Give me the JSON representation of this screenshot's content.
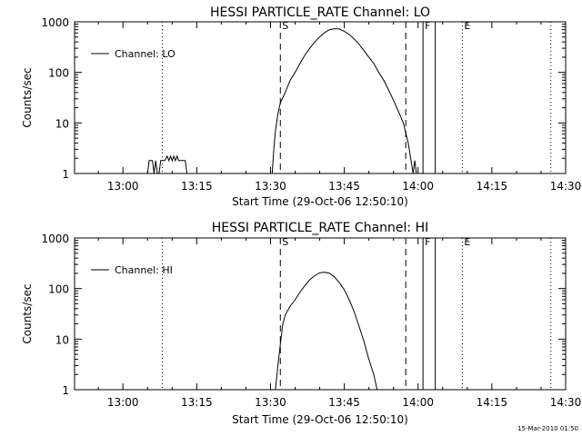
{
  "footer": {
    "timestamp": "15-Mar-2010 01:50"
  },
  "chart_data": [
    {
      "type": "line",
      "title": "HESSI PARTICLE_RATE Channel: LO",
      "xlabel": "Start Time (29-Oct-06 12:50:10)",
      "ylabel": "Counts/sec",
      "yscale": "log",
      "xlim": [
        "12:50:10",
        "14:30:00"
      ],
      "ylim": [
        1,
        1000
      ],
      "x_ticks": [
        "13:00",
        "13:15",
        "13:30",
        "13:45",
        "14:00",
        "14:15",
        "14:30"
      ],
      "y_ticks": [
        "1",
        "10",
        "100",
        "1000"
      ],
      "legend": {
        "position": "top-left",
        "entries": [
          "Channel: LO"
        ]
      },
      "markers": [
        {
          "label": "",
          "time": "13:08:00",
          "style": "dotted"
        },
        {
          "label": "S",
          "time": "13:32:00",
          "style": "dashed"
        },
        {
          "label": "",
          "time": "13:57:30",
          "style": "dashed"
        },
        {
          "label": "F",
          "time": "14:01:00",
          "style": "solid"
        },
        {
          "label": "",
          "time": "14:03:30",
          "style": "solid"
        },
        {
          "label": "E",
          "time": "14:09:00",
          "style": "dotted"
        },
        {
          "label": "",
          "time": "14:27:00",
          "style": "dotted"
        }
      ],
      "series": [
        {
          "name": "Channel: LO",
          "points": [
            [
              "13:05:00",
              1
            ],
            [
              "13:05:20",
              1.8
            ],
            [
              "13:06:00",
              1.8
            ],
            [
              "13:06:20",
              1
            ],
            [
              "13:06:40",
              1.8
            ],
            [
              "13:07:00",
              1
            ],
            [
              "13:07:20",
              1
            ],
            [
              "13:07:40",
              1.8
            ],
            [
              "13:08:30",
              1.8
            ],
            [
              "13:09:00",
              2.2
            ],
            [
              "13:09:20",
              1.8
            ],
            [
              "13:09:40",
              2.2
            ],
            [
              "13:10:00",
              1.8
            ],
            [
              "13:10:20",
              2.2
            ],
            [
              "13:10:40",
              1.8
            ],
            [
              "13:11:00",
              2.2
            ],
            [
              "13:11:20",
              1.8
            ],
            [
              "13:12:40",
              1.8
            ],
            [
              "13:13:00",
              1
            ],
            [
              "13:30:20",
              1
            ],
            [
              "13:30:40",
              3
            ],
            [
              "13:31:00",
              7
            ],
            [
              "13:31:30",
              15
            ],
            [
              "13:32:00",
              25
            ],
            [
              "13:33:00",
              40
            ],
            [
              "13:34:00",
              70
            ],
            [
              "13:35:00",
              100
            ],
            [
              "13:36:00",
              150
            ],
            [
              "13:37:00",
              220
            ],
            [
              "13:38:00",
              300
            ],
            [
              "13:39:00",
              400
            ],
            [
              "13:40:00",
              500
            ],
            [
              "13:41:00",
              610
            ],
            [
              "13:42:00",
              700
            ],
            [
              "13:43:00",
              730
            ],
            [
              "13:44:00",
              720
            ],
            [
              "13:45:00",
              650
            ],
            [
              "13:46:00",
              560
            ],
            [
              "13:47:00",
              460
            ],
            [
              "13:48:00",
              360
            ],
            [
              "13:49:00",
              270
            ],
            [
              "13:50:00",
              200
            ],
            [
              "13:51:00",
              150
            ],
            [
              "13:52:00",
              100
            ],
            [
              "13:53:00",
              70
            ],
            [
              "13:54:00",
              45
            ],
            [
              "13:55:00",
              28
            ],
            [
              "13:56:00",
              17
            ],
            [
              "13:57:00",
              10
            ],
            [
              "13:58:00",
              4
            ],
            [
              "13:58:30",
              2
            ],
            [
              "13:59:00",
              1
            ],
            [
              "13:59:20",
              1.8
            ],
            [
              "13:59:40",
              1
            ]
          ]
        }
      ]
    },
    {
      "type": "line",
      "title": "HESSI PARTICLE_RATE Channel: HI",
      "xlabel": "Start Time (29-Oct-06 12:50:10)",
      "ylabel": "Counts/sec",
      "yscale": "log",
      "xlim": [
        "12:50:10",
        "14:30:00"
      ],
      "ylim": [
        1,
        1000
      ],
      "x_ticks": [
        "13:00",
        "13:15",
        "13:30",
        "13:45",
        "14:00",
        "14:15",
        "14:30"
      ],
      "y_ticks": [
        "1",
        "10",
        "100",
        "1000"
      ],
      "legend": {
        "position": "top-left",
        "entries": [
          "Channel: HI"
        ]
      },
      "markers": [
        {
          "label": "",
          "time": "13:08:00",
          "style": "dotted"
        },
        {
          "label": "S",
          "time": "13:32:00",
          "style": "dashed"
        },
        {
          "label": "",
          "time": "13:57:30",
          "style": "dashed"
        },
        {
          "label": "F",
          "time": "14:01:00",
          "style": "solid"
        },
        {
          "label": "",
          "time": "14:03:30",
          "style": "solid"
        },
        {
          "label": "E",
          "time": "14:09:00",
          "style": "dotted"
        },
        {
          "label": "",
          "time": "14:27:00",
          "style": "dotted"
        }
      ],
      "series": [
        {
          "name": "Channel: HI",
          "points": [
            [
              "13:31:00",
              1
            ],
            [
              "13:31:30",
              3
            ],
            [
              "13:32:00",
              8
            ],
            [
              "13:32:30",
              20
            ],
            [
              "13:33:00",
              30
            ],
            [
              "13:34:00",
              45
            ],
            [
              "13:35:00",
              60
            ],
            [
              "13:36:00",
              85
            ],
            [
              "13:37:00",
              115
            ],
            [
              "13:38:00",
              150
            ],
            [
              "13:39:00",
              180
            ],
            [
              "13:40:00",
              205
            ],
            [
              "13:41:00",
              210
            ],
            [
              "13:42:00",
              200
            ],
            [
              "13:43:00",
              170
            ],
            [
              "13:44:00",
              130
            ],
            [
              "13:45:00",
              95
            ],
            [
              "13:46:00",
              60
            ],
            [
              "13:47:00",
              35
            ],
            [
              "13:48:00",
              18
            ],
            [
              "13:49:00",
              9
            ],
            [
              "13:50:00",
              4
            ],
            [
              "13:51:00",
              2
            ],
            [
              "13:51:40",
              1
            ]
          ]
        }
      ]
    }
  ]
}
